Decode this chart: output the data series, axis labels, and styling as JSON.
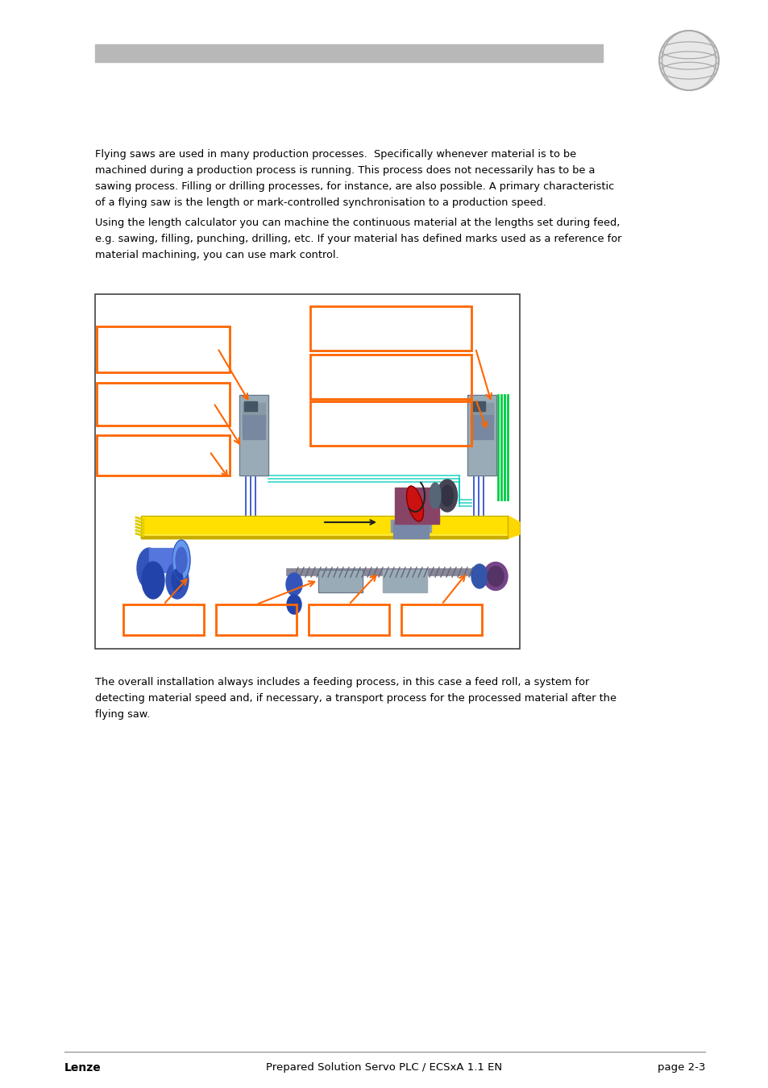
{
  "bg_color": "#ffffff",
  "header_bar_color": "#b8b8b8",
  "text_color": "#000000",
  "orange_color": "#FF6600",
  "green_color": "#00CC66",
  "teal_color": "#00CCBB",
  "yellow_color": "#FFE000",
  "blue_color": "#4477DD",
  "blue_dark": "#2244AA",
  "blue_light": "#88AAEE",
  "red_color": "#CC0000",
  "purple_color": "#884488",
  "grey_cab": "#8899AA",
  "grey_dark": "#556677",
  "grey_light": "#AABBCC",
  "footer_lenze": "Lenze",
  "footer_center": "Prepared Solution Servo PLC / ECSxA 1.1 EN",
  "footer_right": "page 2-3",
  "para1_line1": "Flying saws are used in many production processes.  Specifically whenever material is to be",
  "para1_line2": "machined during a production process is running. This process does not necessarily has to be a",
  "para1_line3": "sawing process. Filling or drilling processes, for instance, are also possible. A primary characteristic",
  "para1_line4": "of a flying saw is the length or mark-controlled synchronisation to a production speed.",
  "para2_line1": "Using the length calculator you can machine the continuous material at the lengths set during feed,",
  "para2_line2": "e.g. sawing, filling, punching, drilling, etc. If your material has defined marks used as a reference for",
  "para2_line3": "material machining, you can use mark control.",
  "para3_line1": "The overall installation always includes a feeding process, in this case a feed roll, a system for",
  "para3_line2": "detecting material speed and, if necessary, a transport process for the processed material after the",
  "para3_line3": "flying saw."
}
